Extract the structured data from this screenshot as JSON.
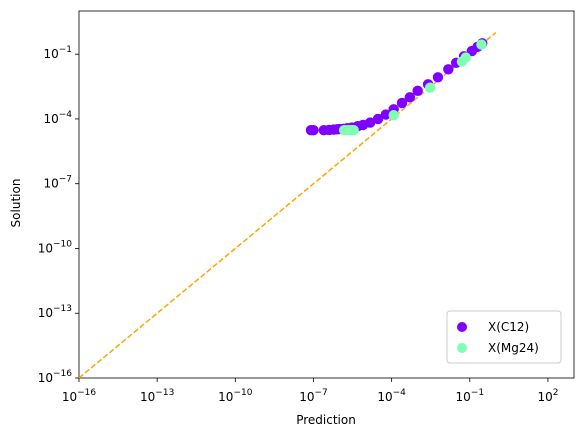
{
  "chart_data": {
    "type": "scatter",
    "xlabel": "Prediction",
    "ylabel": "Solution",
    "xscale": "log",
    "yscale": "log",
    "xlim": [
      1e-16,
      1000
    ],
    "ylim": [
      1e-16,
      10
    ],
    "x_ticks": [
      {
        "value": 1e-16,
        "base": "10",
        "exp": "−16"
      },
      {
        "value": 1e-13,
        "base": "10",
        "exp": "−13"
      },
      {
        "value": 1e-10,
        "base": "10",
        "exp": "−10"
      },
      {
        "value": 1e-07,
        "base": "10",
        "exp": "−7"
      },
      {
        "value": 0.0001,
        "base": "10",
        "exp": "−4"
      },
      {
        "value": 0.1,
        "base": "10",
        "exp": "−1"
      },
      {
        "value": 100,
        "base": "10",
        "exp": "2"
      }
    ],
    "y_ticks": [
      {
        "value": 1e-16,
        "base": "10",
        "exp": "−16"
      },
      {
        "value": 1e-13,
        "base": "10",
        "exp": "−13"
      },
      {
        "value": 1e-10,
        "base": "10",
        "exp": "−10"
      },
      {
        "value": 1e-07,
        "base": "10",
        "exp": "−7"
      },
      {
        "value": 0.0001,
        "base": "10",
        "exp": "−4"
      },
      {
        "value": 0.1,
        "base": "10",
        "exp": "−1"
      }
    ],
    "reference_line": {
      "x": [
        1e-16,
        1.0
      ],
      "y": [
        1e-16,
        1.0
      ],
      "color": "#ffa500",
      "style": "dashed"
    },
    "legend_position": "lower-right",
    "series": [
      {
        "name": "X(C12)",
        "color": "#7f00ff",
        "points": [
          [
            8e-08,
            3e-05
          ],
          [
            1e-07,
            3e-05
          ],
          [
            2.5e-07,
            3e-05
          ],
          [
            4e-07,
            3.1e-05
          ],
          [
            6e-07,
            3.2e-05
          ],
          [
            8e-07,
            3.3e-05
          ],
          [
            1e-06,
            3.4e-05
          ],
          [
            1.4e-06,
            3.5e-05
          ],
          [
            2e-06,
            3.7e-05
          ],
          [
            3e-06,
            4e-05
          ],
          [
            5e-06,
            4.6e-05
          ],
          [
            8e-06,
            5.3e-05
          ],
          [
            1.5e-05,
            6.8e-05
          ],
          [
            3e-05,
            0.0001
          ],
          [
            6e-05,
            0.00016
          ],
          [
            0.00012,
            0.00028
          ],
          [
            0.00025,
            0.00055
          ],
          [
            0.0005,
            0.001
          ],
          [
            0.001,
            0.002
          ],
          [
            0.0025,
            0.004
          ],
          [
            0.006,
            0.0085
          ],
          [
            0.015,
            0.02
          ],
          [
            0.03,
            0.04
          ],
          [
            0.06,
            0.08
          ],
          [
            0.12,
            0.14
          ],
          [
            0.2,
            0.22
          ],
          [
            0.3,
            0.32
          ]
        ]
      },
      {
        "name": "X(Mg24)",
        "color": "#80ffb4",
        "points": [
          [
            1.5e-06,
            3e-05
          ],
          [
            2e-06,
            3e-05
          ],
          [
            2.5e-06,
            3e-05
          ],
          [
            3e-06,
            3e-05
          ],
          [
            3.5e-06,
            3e-05
          ],
          [
            0.00012,
            0.00015
          ],
          [
            0.003,
            0.0028
          ],
          [
            0.05,
            0.045
          ],
          [
            0.07,
            0.07
          ],
          [
            0.28,
            0.28
          ]
        ]
      }
    ]
  }
}
